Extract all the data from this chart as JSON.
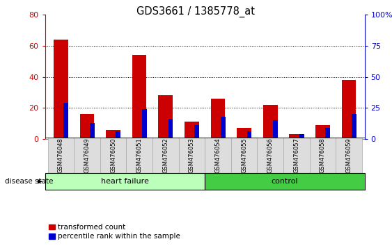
{
  "title": "GDS3661 / 1385778_at",
  "samples": [
    "GSM476048",
    "GSM476049",
    "GSM476050",
    "GSM476051",
    "GSM476052",
    "GSM476053",
    "GSM476054",
    "GSM476055",
    "GSM476056",
    "GSM476057",
    "GSM476058",
    "GSM476059"
  ],
  "transformed_count": [
    64,
    16,
    6,
    54,
    28,
    11,
    26,
    7,
    22,
    3,
    9,
    38
  ],
  "percentile_rank": [
    29,
    13,
    6,
    24,
    16,
    11,
    18,
    6,
    15,
    4,
    9,
    20
  ],
  "percentile_scale": 0.8,
  "left_ylim": [
    0,
    80
  ],
  "right_ylim": [
    0,
    100
  ],
  "left_yticks": [
    0,
    20,
    40,
    60,
    80
  ],
  "right_yticks": [
    0,
    25,
    50,
    75,
    100
  ],
  "right_yticklabels": [
    "0",
    "25",
    "50",
    "75",
    "100%"
  ],
  "bar_color_red": "#cc0000",
  "bar_color_blue": "#0000cc",
  "red_bar_width": 0.55,
  "blue_bar_width": 0.18,
  "heart_failure_color": "#bbffbb",
  "control_color": "#44cc44",
  "tick_label_bg": "#dddddd",
  "left_tick_color": "#cc0000",
  "right_tick_color": "#0000cc",
  "legend_red_label": "transformed count",
  "legend_blue_label": "percentile rank within the sample",
  "disease_state_label": "disease state",
  "heart_failure_label": "heart failure",
  "control_label": "control",
  "grid_yticks": [
    20,
    40,
    60
  ]
}
